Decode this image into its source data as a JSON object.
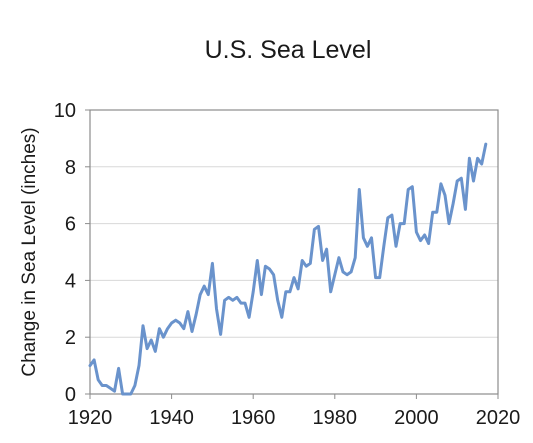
{
  "chart_data": {
    "type": "line",
    "title": "U.S. Sea Level",
    "xlabel": "",
    "ylabel": "Change in Sea Level (inches)",
    "xlim": [
      1920,
      2020
    ],
    "ylim": [
      0,
      10
    ],
    "x_ticks": [
      "1920",
      "1940",
      "1960",
      "1980",
      "2000",
      "2020"
    ],
    "y_ticks": [
      "0",
      "2",
      "4",
      "6",
      "8",
      "10"
    ],
    "grid": true,
    "series_color": "#6a93cc",
    "series": [
      {
        "x": [
          1920,
          1921,
          1922,
          1923,
          1924,
          1925,
          1926,
          1927,
          1928,
          1929,
          1930,
          1931,
          1932,
          1933,
          1934,
          1935,
          1936,
          1937,
          1938,
          1939,
          1940,
          1941,
          1942,
          1943,
          1944,
          1945,
          1946,
          1947,
          1948,
          1949,
          1950,
          1951,
          1952,
          1953,
          1954,
          1955,
          1956,
          1957,
          1958,
          1959,
          1960,
          1961,
          1962,
          1963,
          1964,
          1965,
          1966,
          1967,
          1968,
          1969,
          1970,
          1971,
          1972,
          1973,
          1974,
          1975,
          1976,
          1977,
          1978,
          1979,
          1980,
          1981,
          1982,
          1983,
          1984,
          1985,
          1986,
          1987,
          1988,
          1989,
          1990,
          1991,
          1992,
          1993,
          1994,
          1995,
          1996,
          1997,
          1998,
          1999,
          2000,
          2001,
          2002,
          2003,
          2004,
          2005,
          2006,
          2007,
          2008,
          2009,
          2010,
          2011,
          2012,
          2013,
          2014,
          2015,
          2016,
          2017
        ],
        "y": [
          1.0,
          1.2,
          0.5,
          0.3,
          0.3,
          0.2,
          0.1,
          0.9,
          0.0,
          0.0,
          0.0,
          0.3,
          1.0,
          2.4,
          1.6,
          1.9,
          1.5,
          2.3,
          2.0,
          2.3,
          2.5,
          2.6,
          2.5,
          2.3,
          2.9,
          2.2,
          2.8,
          3.5,
          3.8,
          3.5,
          4.6,
          3.0,
          2.1,
          3.3,
          3.4,
          3.3,
          3.4,
          3.2,
          3.2,
          2.7,
          3.6,
          4.7,
          3.5,
          4.5,
          4.4,
          4.2,
          3.3,
          2.7,
          3.6,
          3.6,
          4.1,
          3.7,
          4.7,
          4.5,
          4.6,
          5.8,
          5.9,
          4.7,
          5.1,
          3.6,
          4.2,
          4.8,
          4.3,
          4.2,
          4.3,
          4.8,
          7.2,
          5.5,
          5.2,
          5.5,
          4.1,
          4.1,
          5.2,
          6.2,
          6.3,
          5.2,
          6.0,
          6.0,
          7.2,
          7.3,
          5.7,
          5.4,
          5.6,
          5.3,
          6.4,
          6.4,
          7.4,
          7.0,
          6.0,
          6.7,
          7.5,
          7.6,
          6.5,
          8.3,
          7.5,
          8.3,
          8.1,
          8.8
        ]
      }
    ]
  }
}
